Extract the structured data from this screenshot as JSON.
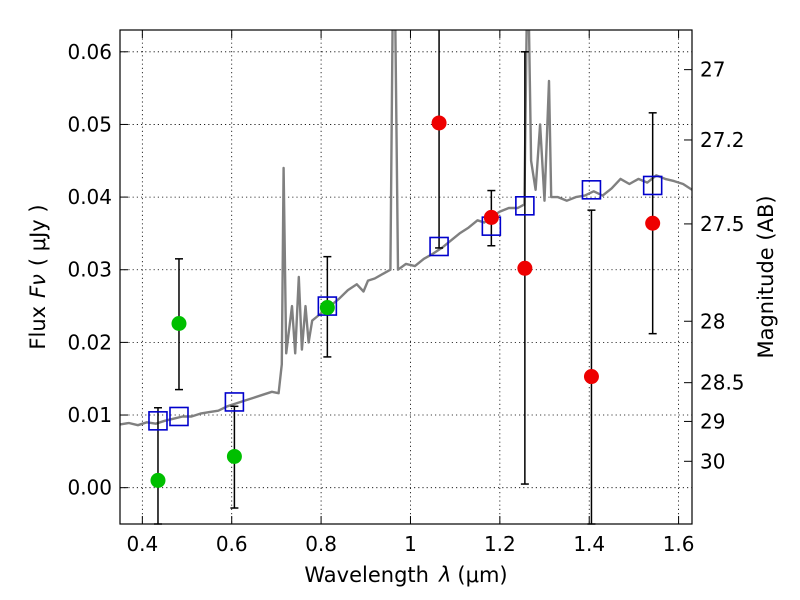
{
  "chart_data": {
    "type": "scatter",
    "xlabel": "Wavelength",
    "xlabel_symbol": "λ",
    "xlabel_units": "(μm)",
    "ylabel": "Flux",
    "ylabel_symbol": "Fν",
    "ylabel_units": "( μJy )",
    "ylabel_right": "Magnitude (AB)",
    "xlim": [
      0.35,
      1.63
    ],
    "ylim": [
      -0.005,
      0.063
    ],
    "x_ticks": [
      {
        "value": 0.4,
        "label": "0.4"
      },
      {
        "value": 0.6,
        "label": "0.6"
      },
      {
        "value": 0.8,
        "label": "0.8"
      },
      {
        "value": 1.0,
        "label": "1"
      },
      {
        "value": 1.2,
        "label": "1.2"
      },
      {
        "value": 1.4,
        "label": "1.4"
      },
      {
        "value": 1.6,
        "label": "1.6"
      }
    ],
    "y_ticks": [
      {
        "value": 0.0,
        "label": "0.00"
      },
      {
        "value": 0.01,
        "label": "0.01"
      },
      {
        "value": 0.02,
        "label": "0.02"
      },
      {
        "value": 0.03,
        "label": "0.03"
      },
      {
        "value": 0.04,
        "label": "0.04"
      },
      {
        "value": 0.05,
        "label": "0.05"
      },
      {
        "value": 0.06,
        "label": "0.06"
      }
    ],
    "right_ticks": [
      {
        "value": 27.0,
        "label": "27"
      },
      {
        "value": 27.2,
        "label": "27.2"
      },
      {
        "value": 27.5,
        "label": "27.5"
      },
      {
        "value": 28.0,
        "label": "28"
      },
      {
        "value": 28.5,
        "label": "28.5"
      },
      {
        "value": 29.0,
        "label": "29"
      },
      {
        "value": 30.0,
        "label": "30"
      }
    ],
    "grid": true,
    "colors": {
      "spectrum": "#808080",
      "green": "#00bf00",
      "red": "#ee0000",
      "model_box": "#0000cc",
      "errorbar": "#000000"
    },
    "series": [
      {
        "name": "model spectrum",
        "style": "line",
        "points": [
          [
            0.35,
            0.0087
          ],
          [
            0.37,
            0.0089
          ],
          [
            0.39,
            0.0086
          ],
          [
            0.41,
            0.009
          ],
          [
            0.43,
            0.0088
          ],
          [
            0.45,
            0.0092
          ],
          [
            0.47,
            0.0095
          ],
          [
            0.49,
            0.0098
          ],
          [
            0.51,
            0.0098
          ],
          [
            0.53,
            0.0102
          ],
          [
            0.55,
            0.0104
          ],
          [
            0.57,
            0.0106
          ],
          [
            0.59,
            0.0112
          ],
          [
            0.61,
            0.0116
          ],
          [
            0.63,
            0.012
          ],
          [
            0.65,
            0.0124
          ],
          [
            0.67,
            0.0128
          ],
          [
            0.69,
            0.0132
          ],
          [
            0.705,
            0.013
          ],
          [
            0.712,
            0.017
          ],
          [
            0.716,
            0.044
          ],
          [
            0.722,
            0.0185
          ],
          [
            0.735,
            0.025
          ],
          [
            0.742,
            0.0185
          ],
          [
            0.75,
            0.029
          ],
          [
            0.757,
            0.019
          ],
          [
            0.765,
            0.025
          ],
          [
            0.772,
            0.02
          ],
          [
            0.78,
            0.023
          ],
          [
            0.79,
            0.0235
          ],
          [
            0.8,
            0.024
          ],
          [
            0.82,
            0.025
          ],
          [
            0.84,
            0.026
          ],
          [
            0.86,
            0.0272
          ],
          [
            0.88,
            0.028
          ],
          [
            0.895,
            0.027
          ],
          [
            0.905,
            0.0285
          ],
          [
            0.92,
            0.0288
          ],
          [
            0.94,
            0.0295
          ],
          [
            0.955,
            0.03
          ],
          [
            0.96,
            0.064
          ],
          [
            0.966,
            0.064
          ],
          [
            0.972,
            0.03
          ],
          [
            0.99,
            0.0308
          ],
          [
            1.01,
            0.0305
          ],
          [
            1.03,
            0.0315
          ],
          [
            1.05,
            0.0322
          ],
          [
            1.07,
            0.033
          ],
          [
            1.09,
            0.034
          ],
          [
            1.11,
            0.035
          ],
          [
            1.13,
            0.0358
          ],
          [
            1.15,
            0.0368
          ],
          [
            1.165,
            0.0365
          ],
          [
            1.18,
            0.0372
          ],
          [
            1.2,
            0.038
          ],
          [
            1.22,
            0.0385
          ],
          [
            1.24,
            0.0385
          ],
          [
            1.255,
            0.039
          ],
          [
            1.26,
            0.064
          ],
          [
            1.265,
            0.064
          ],
          [
            1.27,
            0.045
          ],
          [
            1.28,
            0.041
          ],
          [
            1.29,
            0.05
          ],
          [
            1.3,
            0.0395
          ],
          [
            1.31,
            0.056
          ],
          [
            1.315,
            0.04
          ],
          [
            1.33,
            0.04
          ],
          [
            1.35,
            0.0395
          ],
          [
            1.37,
            0.04
          ],
          [
            1.39,
            0.0402
          ],
          [
            1.41,
            0.0408
          ],
          [
            1.43,
            0.0402
          ],
          [
            1.45,
            0.0412
          ],
          [
            1.47,
            0.0425
          ],
          [
            1.49,
            0.0418
          ],
          [
            1.51,
            0.0425
          ],
          [
            1.53,
            0.042
          ],
          [
            1.55,
            0.043
          ],
          [
            1.57,
            0.0425
          ],
          [
            1.59,
            0.0422
          ],
          [
            1.61,
            0.0418
          ],
          [
            1.63,
            0.041
          ]
        ]
      },
      {
        "name": "green photometry",
        "style": "marker",
        "points": [
          {
            "x": 0.435,
            "y": 0.001,
            "err_low": -0.005,
            "err_high": 0.011
          },
          {
            "x": 0.482,
            "y": 0.0226,
            "err_low": 0.0135,
            "err_high": 0.0315
          },
          {
            "x": 0.606,
            "y": 0.0043,
            "err_low": -0.0028,
            "err_high": 0.0112
          },
          {
            "x": 0.814,
            "y": 0.0248,
            "err_low": 0.018,
            "err_high": 0.0318
          }
        ]
      },
      {
        "name": "red photometry",
        "style": "marker",
        "points": [
          {
            "x": 1.064,
            "y": 0.0502,
            "err_low": 0.033,
            "err_high": 0.064
          },
          {
            "x": 1.181,
            "y": 0.0372,
            "err_low": 0.0333,
            "err_high": 0.0409
          },
          {
            "x": 1.256,
            "y": 0.0302,
            "err_low": 0.0005,
            "err_high": 0.06
          },
          {
            "x": 1.405,
            "y": 0.0153,
            "err_low": -0.005,
            "err_high": 0.0382
          },
          {
            "x": 1.542,
            "y": 0.0364,
            "err_low": 0.0212,
            "err_high": 0.0516
          }
        ]
      },
      {
        "name": "model photometry",
        "style": "open-square",
        "points": [
          [
            0.435,
            0.0092
          ],
          [
            0.482,
            0.0098
          ],
          [
            0.606,
            0.0118
          ],
          [
            0.814,
            0.025
          ],
          [
            1.064,
            0.0332
          ],
          [
            1.181,
            0.036
          ],
          [
            1.256,
            0.0388
          ],
          [
            1.405,
            0.041
          ],
          [
            1.542,
            0.0416
          ]
        ]
      }
    ]
  }
}
